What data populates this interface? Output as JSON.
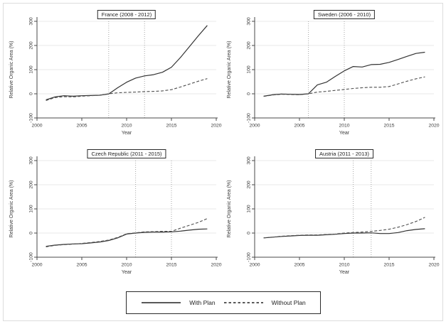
{
  "figure": {
    "ylabel": "Relative Organic Area (%)",
    "xlabel": "Year",
    "legend": {
      "items": [
        {
          "label": "With Plan",
          "style": "solid"
        },
        {
          "label": "Without Plan",
          "style": "dashed"
        }
      ]
    },
    "colors": {
      "solid_line": "#333333",
      "dashed_line": "#4d4d4d",
      "grid": "#e8e8e8",
      "vline": "#a6a6a6",
      "axis": "#4a4a4a",
      "text": "#3a3a3a",
      "figure_border": "#dcdcdc"
    }
  },
  "chart_data": [
    {
      "type": "line",
      "title": "France (2008 - 2012)",
      "xlabel": "Year",
      "ylabel": "Relative Organic Area (%)",
      "xlim": [
        2000,
        2020
      ],
      "ylim": [
        -100,
        300
      ],
      "x_ticks": [
        2000,
        2005,
        2010,
        2015,
        2020
      ],
      "y_ticks": [
        -100,
        0,
        100,
        200,
        300
      ],
      "vlines": [
        2008,
        2012
      ],
      "grid": true,
      "x": [
        2001,
        2002,
        2003,
        2004,
        2005,
        2006,
        2007,
        2008,
        2009,
        2010,
        2011,
        2012,
        2013,
        2014,
        2015,
        2016,
        2017,
        2018,
        2019
      ],
      "series": [
        {
          "name": "With Plan",
          "style": "solid",
          "values": [
            -25,
            -13,
            -8,
            -10,
            -8,
            -7,
            -6,
            -1,
            25,
            48,
            65,
            74,
            79,
            89,
            110,
            150,
            195,
            240,
            283
          ]
        },
        {
          "name": "Without Plan",
          "style": "dashed",
          "values": [
            -28,
            -16,
            -12,
            -13,
            -10,
            -8,
            -6,
            0,
            4,
            6,
            7,
            9,
            10,
            12,
            17,
            28,
            40,
            52,
            63
          ]
        }
      ]
    },
    {
      "type": "line",
      "title": "Sweden (2006 - 2010)",
      "xlabel": "Year",
      "ylabel": "Relative Organic Area (%)",
      "xlim": [
        2000,
        2020
      ],
      "ylim": [
        -100,
        300
      ],
      "x_ticks": [
        2000,
        2005,
        2010,
        2015,
        2020
      ],
      "y_ticks": [
        -100,
        0,
        100,
        200,
        300
      ],
      "vlines": [
        2006,
        2010
      ],
      "grid": true,
      "x": [
        2001,
        2002,
        2003,
        2004,
        2005,
        2006,
        2007,
        2008,
        2009,
        2010,
        2011,
        2012,
        2013,
        2014,
        2015,
        2016,
        2017,
        2018,
        2019
      ],
      "series": [
        {
          "name": "With Plan",
          "style": "solid",
          "values": [
            -10,
            -4,
            -1,
            -2,
            -3,
            0,
            37,
            48,
            72,
            95,
            113,
            111,
            121,
            122,
            130,
            142,
            155,
            167,
            172
          ]
        },
        {
          "name": "Without Plan",
          "style": "dashed",
          "values": [
            -11,
            -5,
            -2,
            -3,
            -4,
            0,
            7,
            10,
            14,
            18,
            22,
            25,
            27,
            27,
            30,
            41,
            52,
            62,
            70
          ]
        }
      ]
    },
    {
      "type": "line",
      "title": "Czech Republic (2011 - 2015)",
      "xlabel": "Year",
      "ylabel": "Relative Organic Area (%)",
      "xlim": [
        2000,
        2020
      ],
      "ylim": [
        -100,
        300
      ],
      "x_ticks": [
        2000,
        2005,
        2010,
        2015,
        2020
      ],
      "y_ticks": [
        -100,
        0,
        100,
        200,
        300
      ],
      "vlines": [
        2011,
        2015
      ],
      "grid": true,
      "x": [
        2001,
        2002,
        2003,
        2004,
        2005,
        2006,
        2007,
        2008,
        2009,
        2010,
        2011,
        2012,
        2013,
        2014,
        2015,
        2016,
        2017,
        2018,
        2019
      ],
      "series": [
        {
          "name": "With Plan",
          "style": "solid",
          "values": [
            -55,
            -50,
            -47,
            -45,
            -44,
            -41,
            -37,
            -31,
            -20,
            -4,
            0,
            3,
            4,
            4,
            5,
            8,
            12,
            16,
            17
          ]
        },
        {
          "name": "Without Plan",
          "style": "dashed",
          "values": [
            -57,
            -51,
            -48,
            -46,
            -43,
            -39,
            -35,
            -29,
            -18,
            -3,
            1,
            5,
            6,
            7,
            7,
            20,
            32,
            44,
            60
          ]
        }
      ]
    },
    {
      "type": "line",
      "title": "Austria (2011 - 2013)",
      "xlabel": "Year",
      "ylabel": "Relative Organic Area (%)",
      "xlim": [
        2000,
        2020
      ],
      "ylim": [
        -100,
        300
      ],
      "x_ticks": [
        2000,
        2005,
        2010,
        2015,
        2020
      ],
      "y_ticks": [
        -100,
        0,
        100,
        200,
        300
      ],
      "vlines": [
        2011,
        2013
      ],
      "grid": true,
      "x": [
        2001,
        2002,
        2003,
        2004,
        2005,
        2006,
        2007,
        2008,
        2009,
        2010,
        2011,
        2012,
        2013,
        2014,
        2015,
        2016,
        2017,
        2018,
        2019
      ],
      "series": [
        {
          "name": "With Plan",
          "style": "solid",
          "values": [
            -20,
            -17,
            -14,
            -12,
            -10,
            -9,
            -9,
            -7,
            -5,
            -2,
            0,
            0,
            1,
            -2,
            -2,
            2,
            10,
            15,
            18
          ]
        },
        {
          "name": "Without Plan",
          "style": "dashed",
          "values": [
            -20,
            -17,
            -13,
            -11,
            -9,
            -8,
            -8,
            -6,
            -4,
            0,
            2,
            4,
            7,
            11,
            16,
            24,
            35,
            48,
            65
          ]
        }
      ]
    }
  ]
}
